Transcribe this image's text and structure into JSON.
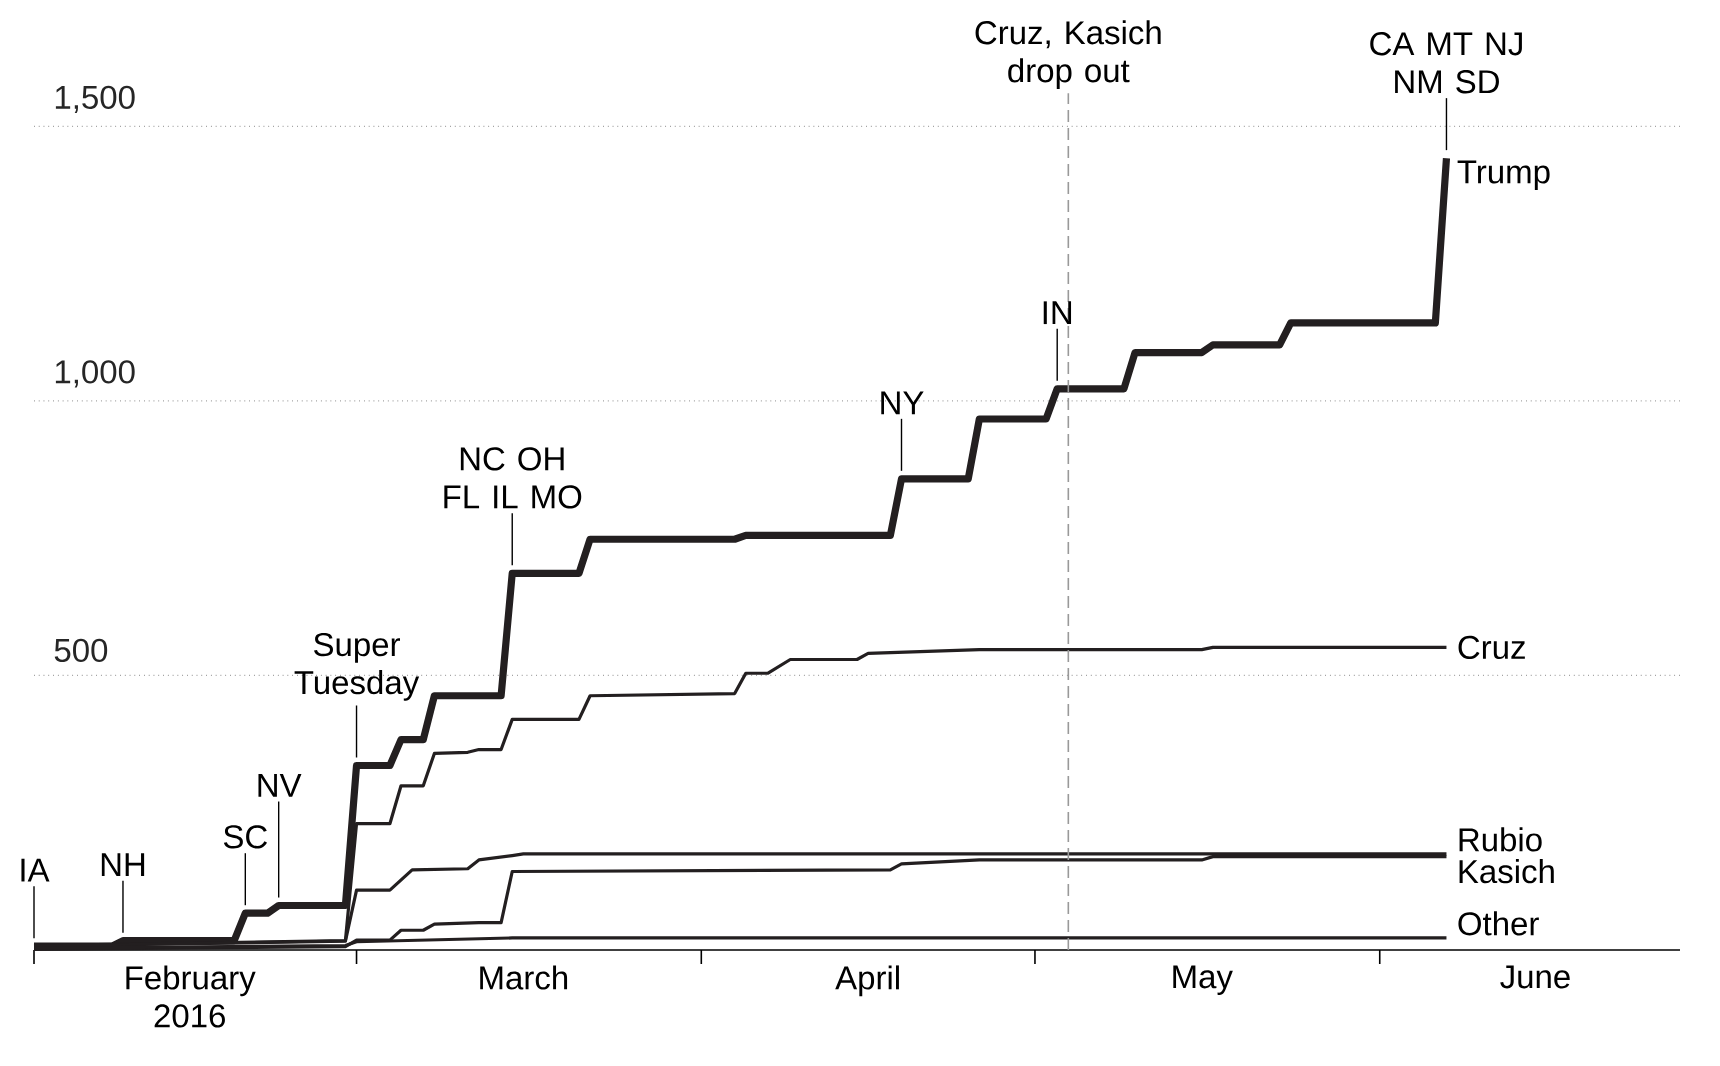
{
  "chart_data": {
    "type": "line",
    "xlim": [
      "2016-02-01",
      "2016-06-28"
    ],
    "ylim": [
      0,
      1500
    ],
    "xticks": [
      {
        "value": "2016-02-01",
        "label": null
      },
      {
        "value": "2016-03-01",
        "label": null
      },
      {
        "value": "2016-04-01",
        "label": null
      },
      {
        "value": "2016-05-01",
        "label": null
      },
      {
        "value": "2016-06-01",
        "label": null
      },
      {
        "value": "2016-02-15",
        "label": "February 2016"
      },
      {
        "value": "2016-03-16",
        "label": "March"
      },
      {
        "value": "2016-04-16",
        "label": "April"
      },
      {
        "value": "2016-05-16",
        "label": "May"
      },
      {
        "value": "2016-06-15",
        "label": "June"
      }
    ],
    "yticks": [
      500,
      {
        "value": 1000,
        "label": "1,000"
      },
      {
        "value": 1500,
        "label": "1,500"
      }
    ],
    "grid": "y",
    "series": [
      {
        "name": "Trump",
        "color": "#231f20",
        "x": [
          "2016-02-01",
          "2016-02-08",
          "2016-02-09",
          "2016-02-19",
          "2016-02-20",
          "2016-02-22",
          "2016-02-23",
          "2016-02-29",
          "2016-03-01",
          "2016-03-04",
          "2016-03-05",
          "2016-03-07",
          "2016-03-08",
          "2016-03-14",
          "2016-03-15",
          "2016-03-21",
          "2016-03-22",
          "2016-04-04",
          "2016-04-05",
          "2016-04-18",
          "2016-04-19",
          "2016-04-25",
          "2016-04-26",
          "2016-05-02",
          "2016-05-03",
          "2016-05-09",
          "2016-05-10",
          "2016-05-16",
          "2016-05-17",
          "2016-05-23",
          "2016-05-24",
          "2016-06-06",
          "2016-06-07"
        ],
        "values": [
          7,
          7,
          17,
          17,
          67,
          67,
          81,
          81,
          336,
          336,
          383,
          383,
          463,
          463,
          686,
          686,
          748,
          748,
          755,
          755,
          858,
          858,
          967,
          967,
          1022,
          1022,
          1088,
          1088,
          1102,
          1102,
          1142,
          1142,
          1442
        ]
      },
      {
        "name": "Cruz",
        "color": "#231f20",
        "x": [
          "2016-02-01",
          "2016-02-29",
          "2016-03-01",
          "2016-03-04",
          "2016-03-05",
          "2016-03-07",
          "2016-03-08",
          "2016-03-11",
          "2016-03-12",
          "2016-03-14",
          "2016-03-15",
          "2016-03-21",
          "2016-03-22",
          "2016-04-04",
          "2016-04-05",
          "2016-04-07",
          "2016-04-09",
          "2016-04-15",
          "2016-04-16",
          "2016-04-26",
          "2016-05-16",
          "2016-05-17",
          "2016-06-07"
        ],
        "values": [
          8,
          17,
          230,
          230,
          299,
          299,
          358,
          360,
          365,
          365,
          420,
          420,
          463,
          467,
          504,
          504,
          529,
          529,
          540,
          547,
          547,
          551,
          551
        ]
      },
      {
        "name": "Rubio",
        "color": "#231f20",
        "x": [
          "2016-02-01",
          "2016-02-29",
          "2016-03-01",
          "2016-03-04",
          "2016-03-06",
          "2016-03-11",
          "2016-03-12",
          "2016-03-15",
          "2016-03-16",
          "2016-06-07"
        ],
        "values": [
          7,
          16,
          109,
          109,
          146,
          148,
          164,
          172,
          175,
          175
        ]
      },
      {
        "name": "Kasich",
        "color": "#231f20",
        "x": [
          "2016-02-01",
          "2016-02-29",
          "2016-03-01",
          "2016-03-04",
          "2016-03-05",
          "2016-03-07",
          "2016-03-08",
          "2016-03-12",
          "2016-03-14",
          "2016-03-15",
          "2016-04-18",
          "2016-04-19",
          "2016-04-26",
          "2016-05-16",
          "2016-05-17",
          "2016-06-07"
        ],
        "values": [
          1,
          6,
          18,
          18,
          36,
          36,
          47,
          50,
          50,
          143,
          146,
          157,
          164,
          164,
          170,
          170
        ]
      },
      {
        "name": "Other",
        "color": "#231f20",
        "x": [
          "2016-02-01",
          "2016-02-29",
          "2016-03-01",
          "2016-03-15",
          "2016-06-07"
        ],
        "values": [
          3,
          8,
          15,
          22,
          22
        ]
      }
    ],
    "ref_lines": [
      {
        "axis": "x",
        "value": "2016-05-04",
        "label": "Cruz, Kasich drop out",
        "color": "#999999",
        "line_style": "dashed"
      }
    ],
    "annotations": [
      {
        "text": "IA",
        "x": "2016-02-01",
        "y": 7
      },
      {
        "text": "NH",
        "x": "2016-02-09",
        "y": 17
      },
      {
        "text": "SC",
        "x": "2016-02-20",
        "y": 67
      },
      {
        "text": "NV",
        "x": "2016-02-23",
        "y": 81
      },
      {
        "text": "Super Tuesday",
        "x": "2016-03-01",
        "y": 336
      },
      {
        "text": "NC OH",
        "x": "2016-03-15",
        "y": 686
      },
      {
        "text": "FL IL MO",
        "x": "2016-03-15",
        "y": 686
      },
      {
        "text": "NY",
        "x": "2016-04-19",
        "y": 858
      },
      {
        "text": "IN",
        "x": "2016-05-03",
        "y": 1022
      },
      {
        "text": "CA MT NJ",
        "x": "2016-06-07",
        "y": 1442
      },
      {
        "text": "NM SD",
        "x": "2016-06-07",
        "y": 1442
      }
    ]
  }
}
